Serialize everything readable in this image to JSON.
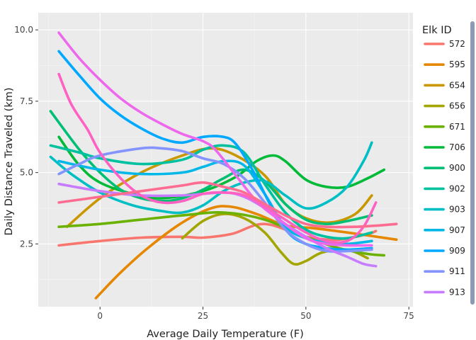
{
  "chart_data": {
    "type": "line",
    "title": "",
    "xlabel": "Average Daily Temperature (F)",
    "ylabel": "Daily Distance Traveled (km)",
    "xlim": [
      -15,
      76
    ],
    "ylim": [
      0.3,
      10.6
    ],
    "x_ticks": [
      0,
      25,
      50,
      75
    ],
    "y_ticks": [
      2.5,
      5.0,
      7.5,
      10.0
    ],
    "x_tick_labels": [
      "0",
      "25",
      "50",
      "75"
    ],
    "y_tick_labels": [
      "2.5",
      "5.0",
      "7.5",
      "10.0"
    ],
    "grid": true,
    "legend": {
      "title": "Elk ID",
      "placement": "right",
      "visible_entries": [
        "572",
        "595",
        "654",
        "656",
        "671",
        "706",
        "900",
        "902",
        "903",
        "907",
        "909",
        "911",
        "913"
      ]
    },
    "series": [
      {
        "name": "572",
        "color": "#F8766D",
        "points": [
          [
            -10,
            2.45
          ],
          [
            0,
            2.6
          ],
          [
            10,
            2.72
          ],
          [
            20,
            2.75
          ],
          [
            25,
            2.72
          ],
          [
            32,
            2.85
          ],
          [
            40,
            3.2
          ],
          [
            50,
            2.75
          ],
          [
            58,
            2.65
          ],
          [
            65,
            2.85
          ],
          [
            67,
            2.95
          ]
        ]
      },
      {
        "name": "595",
        "color": "#E58700",
        "points": [
          [
            -1,
            0.6
          ],
          [
            5,
            1.5
          ],
          [
            12,
            2.4
          ],
          [
            20,
            3.25
          ],
          [
            27,
            3.75
          ],
          [
            32,
            3.8
          ],
          [
            38,
            3.55
          ],
          [
            45,
            3.15
          ],
          [
            52,
            3.05
          ],
          [
            60,
            2.9
          ],
          [
            72,
            2.65
          ]
        ]
      },
      {
        "name": "654",
        "color": "#C99800",
        "points": [
          [
            -8,
            3.1
          ],
          [
            0,
            4.1
          ],
          [
            10,
            5.0
          ],
          [
            20,
            5.6
          ],
          [
            27,
            5.85
          ],
          [
            33,
            5.6
          ],
          [
            40,
            4.9
          ],
          [
            45,
            3.9
          ],
          [
            50,
            3.4
          ],
          [
            56,
            3.25
          ],
          [
            62,
            3.55
          ],
          [
            66,
            4.2
          ]
        ]
      },
      {
        "name": "656",
        "color": "#A3A500",
        "points": [
          [
            20,
            2.7
          ],
          [
            25,
            3.3
          ],
          [
            30,
            3.55
          ],
          [
            35,
            3.4
          ],
          [
            40,
            2.9
          ],
          [
            44,
            2.2
          ],
          [
            47,
            1.8
          ],
          [
            50,
            1.9
          ],
          [
            54,
            2.2
          ],
          [
            60,
            2.3
          ],
          [
            65,
            2.0
          ]
        ]
      },
      {
        "name": "671",
        "color": "#6BB100",
        "points": [
          [
            -10,
            3.1
          ],
          [
            0,
            3.2
          ],
          [
            10,
            3.35
          ],
          [
            20,
            3.5
          ],
          [
            30,
            3.6
          ],
          [
            40,
            3.35
          ],
          [
            50,
            2.75
          ],
          [
            58,
            2.35
          ],
          [
            65,
            2.15
          ],
          [
            69,
            2.1
          ]
        ]
      },
      {
        "name": "706",
        "color": "#00BA38",
        "points": [
          [
            -10,
            6.25
          ],
          [
            -5,
            5.25
          ],
          [
            0,
            4.65
          ],
          [
            8,
            4.25
          ],
          [
            15,
            4.1
          ],
          [
            25,
            4.35
          ],
          [
            33,
            4.85
          ],
          [
            38,
            5.4
          ],
          [
            42,
            5.6
          ],
          [
            45,
            5.4
          ],
          [
            50,
            4.75
          ],
          [
            55,
            4.5
          ],
          [
            60,
            4.5
          ],
          [
            65,
            4.8
          ],
          [
            69,
            5.1
          ]
        ]
      },
      {
        "name": "900",
        "color": "#00BF74",
        "points": [
          [
            -12,
            7.15
          ],
          [
            -5,
            5.8
          ],
          [
            0,
            5.0
          ],
          [
            5,
            4.4
          ],
          [
            10,
            4.1
          ],
          [
            15,
            4.0
          ],
          [
            20,
            4.1
          ],
          [
            25,
            4.4
          ],
          [
            30,
            4.8
          ],
          [
            35,
            5.1
          ],
          [
            40,
            4.7
          ],
          [
            45,
            3.9
          ],
          [
            50,
            3.35
          ],
          [
            55,
            3.2
          ],
          [
            60,
            3.3
          ],
          [
            66,
            3.5
          ]
        ]
      },
      {
        "name": "902",
        "color": "#00C19F",
        "points": [
          [
            -12,
            5.95
          ],
          [
            -5,
            5.7
          ],
          [
            0,
            5.5
          ],
          [
            10,
            5.3
          ],
          [
            20,
            5.45
          ],
          [
            25,
            5.8
          ],
          [
            30,
            5.95
          ],
          [
            35,
            5.7
          ],
          [
            40,
            4.6
          ],
          [
            45,
            3.6
          ],
          [
            50,
            3.0
          ],
          [
            55,
            2.75
          ],
          [
            60,
            2.7
          ],
          [
            66,
            2.9
          ]
        ]
      },
      {
        "name": "903",
        "color": "#00BFC4",
        "points": [
          [
            -12,
            5.55
          ],
          [
            -7,
            4.95
          ],
          [
            0,
            4.3
          ],
          [
            8,
            3.85
          ],
          [
            15,
            3.65
          ],
          [
            20,
            3.6
          ],
          [
            25,
            3.85
          ],
          [
            30,
            4.35
          ],
          [
            35,
            4.65
          ],
          [
            40,
            4.7
          ],
          [
            45,
            4.2
          ],
          [
            50,
            3.75
          ],
          [
            55,
            3.95
          ],
          [
            60,
            4.5
          ],
          [
            64,
            5.4
          ],
          [
            66,
            6.05
          ]
        ]
      },
      {
        "name": "907",
        "color": "#00B8E7",
        "points": [
          [
            -10,
            5.4
          ],
          [
            0,
            5.1
          ],
          [
            10,
            4.95
          ],
          [
            20,
            5.0
          ],
          [
            25,
            5.2
          ],
          [
            30,
            5.4
          ],
          [
            35,
            5.25
          ],
          [
            40,
            4.25
          ],
          [
            45,
            3.1
          ],
          [
            50,
            2.7
          ],
          [
            55,
            2.55
          ],
          [
            60,
            2.5
          ],
          [
            66,
            2.6
          ]
        ]
      },
      {
        "name": "909",
        "color": "#00A9FF",
        "points": [
          [
            -10,
            9.25
          ],
          [
            -5,
            8.4
          ],
          [
            0,
            7.6
          ],
          [
            5,
            7.0
          ],
          [
            10,
            6.55
          ],
          [
            15,
            6.2
          ],
          [
            20,
            6.05
          ],
          [
            25,
            6.25
          ],
          [
            30,
            6.25
          ],
          [
            33,
            6.0
          ],
          [
            37,
            5.1
          ],
          [
            42,
            3.7
          ],
          [
            46,
            2.85
          ],
          [
            50,
            2.5
          ],
          [
            55,
            2.35
          ],
          [
            60,
            2.3
          ],
          [
            66,
            2.35
          ]
        ]
      },
      {
        "name": "911",
        "color": "#8494FF",
        "points": [
          [
            -10,
            4.95
          ],
          [
            -5,
            5.3
          ],
          [
            0,
            5.6
          ],
          [
            10,
            5.85
          ],
          [
            15,
            5.85
          ],
          [
            20,
            5.75
          ],
          [
            25,
            5.5
          ],
          [
            30,
            5.3
          ],
          [
            35,
            4.8
          ],
          [
            40,
            3.95
          ],
          [
            45,
            3.0
          ],
          [
            50,
            2.5
          ],
          [
            55,
            2.25
          ],
          [
            60,
            2.25
          ],
          [
            66,
            2.3
          ]
        ]
      },
      {
        "name": "913",
        "color": "#C77CFF",
        "points": [
          [
            -10,
            4.6
          ],
          [
            0,
            4.35
          ],
          [
            10,
            4.2
          ],
          [
            20,
            4.2
          ],
          [
            30,
            4.3
          ],
          [
            35,
            4.15
          ],
          [
            40,
            3.75
          ],
          [
            45,
            3.2
          ],
          [
            50,
            2.75
          ],
          [
            55,
            2.35
          ],
          [
            60,
            2.05
          ],
          [
            64,
            1.8
          ],
          [
            67,
            1.72
          ]
        ]
      },
      {
        "name": "",
        "color": "#ED68ED",
        "points": [
          [
            -10,
            9.9
          ],
          [
            -5,
            9.0
          ],
          [
            0,
            8.25
          ],
          [
            5,
            7.6
          ],
          [
            10,
            7.1
          ],
          [
            15,
            6.7
          ],
          [
            20,
            6.35
          ],
          [
            25,
            6.1
          ],
          [
            28,
            5.8
          ],
          [
            33,
            4.9
          ],
          [
            38,
            4.0
          ],
          [
            43,
            3.4
          ],
          [
            50,
            2.7
          ],
          [
            55,
            2.5
          ],
          [
            60,
            2.45
          ],
          [
            66,
            2.45
          ]
        ]
      },
      {
        "name": "",
        "color": "#FF61C3",
        "points": [
          [
            -10,
            8.45
          ],
          [
            -7,
            7.4
          ],
          [
            -3,
            6.5
          ],
          [
            0,
            5.7
          ],
          [
            5,
            4.8
          ],
          [
            10,
            4.2
          ],
          [
            15,
            3.95
          ],
          [
            20,
            4.0
          ],
          [
            25,
            4.25
          ],
          [
            30,
            4.3
          ],
          [
            35,
            4.2
          ],
          [
            40,
            3.8
          ],
          [
            45,
            3.35
          ],
          [
            50,
            2.9
          ],
          [
            55,
            2.6
          ],
          [
            60,
            2.6
          ],
          [
            64,
            3.1
          ],
          [
            67,
            3.95
          ]
        ]
      },
      {
        "name": "",
        "color": "#FF6C91",
        "points": [
          [
            -10,
            3.95
          ],
          [
            0,
            4.15
          ],
          [
            10,
            4.35
          ],
          [
            20,
            4.55
          ],
          [
            25,
            4.65
          ],
          [
            30,
            4.5
          ],
          [
            35,
            4.3
          ],
          [
            40,
            3.9
          ],
          [
            45,
            3.5
          ],
          [
            50,
            3.2
          ],
          [
            55,
            3.1
          ],
          [
            62,
            3.1
          ],
          [
            68,
            3.15
          ],
          [
            72,
            3.2
          ]
        ]
      }
    ]
  }
}
